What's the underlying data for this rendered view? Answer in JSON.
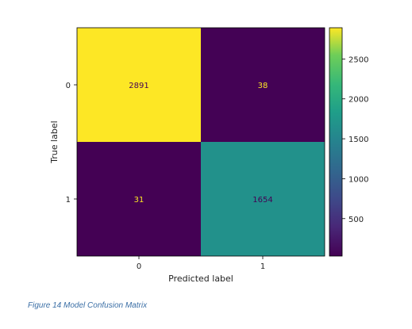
{
  "chart_data": {
    "type": "heatmap",
    "title": "",
    "xlabel": "Predicted label",
    "ylabel": "True label",
    "x_ticks": [
      "0",
      "1"
    ],
    "y_ticks": [
      "0",
      "1"
    ],
    "matrix": [
      [
        2891,
        38
      ],
      [
        31,
        1654
      ]
    ],
    "cell_labels": [
      [
        "2891",
        "38"
      ],
      [
        "31",
        "1654"
      ]
    ],
    "colormap": "viridis",
    "colorbar": {
      "ticks": [
        "500",
        "1000",
        "1500",
        "2000",
        "2500"
      ],
      "tick_values": [
        500,
        1000,
        1500,
        2000,
        2500
      ],
      "range": [
        31,
        2891
      ]
    },
    "colors": {
      "high": "#fde725",
      "low": "#440154",
      "mid": "#3aa083",
      "high_text": "#440154",
      "low_text": "#fde725"
    }
  },
  "caption": "Figure 14 Model Confusion Matrix"
}
